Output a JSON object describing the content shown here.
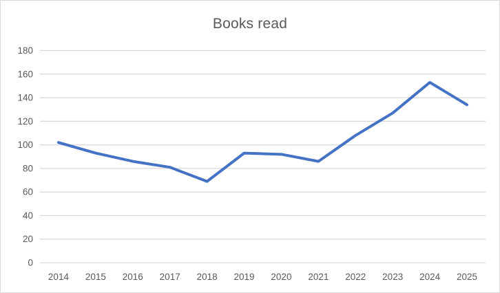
{
  "chart_data": {
    "type": "line",
    "title": "Books read",
    "categories": [
      "2014",
      "2015",
      "2016",
      "2017",
      "2018",
      "2019",
      "2020",
      "2021",
      "2022",
      "2023",
      "2024",
      "2025"
    ],
    "series": [
      {
        "name": "Books read",
        "values": [
          102,
          93,
          86,
          81,
          69,
          93,
          92,
          86,
          108,
          127,
          153,
          134
        ]
      }
    ],
    "yticks": [
      0,
      20,
      40,
      60,
      80,
      100,
      120,
      140,
      160,
      180
    ],
    "ylim": [
      0,
      180
    ],
    "xlabel": "",
    "ylabel": "",
    "grid": "horizontal-only",
    "legend_position": "none",
    "colors": {
      "line": "#4472C4",
      "gridline": "#D9D9D9",
      "tick_label": "#595959",
      "title": "#595959",
      "background": "#FFFFFF",
      "frame_border": "#D9D9D9"
    }
  }
}
